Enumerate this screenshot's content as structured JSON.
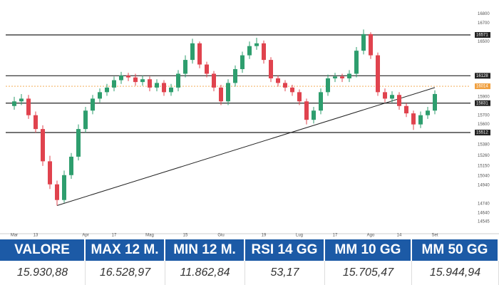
{
  "chart_data": {
    "type": "candlestick",
    "categories": [
      "Mar",
      null,
      null,
      "13",
      null,
      null,
      null,
      null,
      null,
      null,
      "Apr",
      null,
      null,
      null,
      "17",
      null,
      null,
      null,
      null,
      "Mag",
      null,
      null,
      null,
      null,
      "15",
      null,
      null,
      null,
      null,
      "Giu",
      null,
      null,
      null,
      null,
      null,
      "19",
      null,
      null,
      null,
      null,
      "Lug",
      null,
      null,
      null,
      null,
      "17",
      null,
      null,
      null,
      null,
      "Ago",
      null,
      null,
      null,
      "14",
      null,
      null,
      null,
      null,
      "Set"
    ],
    "open": [
      15800,
      15850,
      15880,
      15700,
      15550,
      15200,
      14950,
      14780,
      15050,
      15250,
      15550,
      15750,
      15880,
      15950,
      16000,
      16080,
      16130,
      16110,
      16060,
      16090,
      16000,
      16050,
      15950,
      16000,
      16150,
      16300,
      16480,
      16250,
      16150,
      16000,
      15850,
      16050,
      16200,
      16350,
      16450,
      16480,
      16300,
      16100,
      16050,
      16000,
      15950,
      15850,
      15650,
      15750,
      15950,
      16100,
      16120,
      16100,
      16150,
      16400,
      16580,
      16350,
      15950,
      15880,
      15920,
      15800,
      15720,
      15600,
      15700,
      15750
    ],
    "high": [
      15900,
      15930,
      15920,
      15740,
      15590,
      15260,
      14990,
      15100,
      15290,
      15600,
      15790,
      15920,
      15990,
      16040,
      16120,
      16170,
      16160,
      16150,
      16130,
      16120,
      16090,
      16080,
      16040,
      16190,
      16350,
      16530,
      16500,
      16280,
      16180,
      16030,
      16090,
      16240,
      16390,
      16500,
      16540,
      16510,
      16330,
      16130,
      16080,
      16030,
      15980,
      15880,
      15790,
      15990,
      16140,
      16160,
      16150,
      16190,
      16440,
      16630,
      16600,
      16380,
      15990,
      15960,
      15950,
      15830,
      15750,
      15740,
      15790,
      15970
    ],
    "low": [
      15760,
      15810,
      15660,
      15510,
      15150,
      14900,
      14720,
      14750,
      15010,
      15210,
      15510,
      15710,
      15840,
      15910,
      15960,
      16040,
      16070,
      16020,
      16020,
      15960,
      15960,
      15910,
      15910,
      15960,
      16110,
      16260,
      16210,
      16110,
      15960,
      15810,
      15810,
      16010,
      16160,
      16310,
      16410,
      16260,
      16060,
      16010,
      15960,
      15910,
      15810,
      15600,
      15610,
      15710,
      15910,
      16060,
      16060,
      16060,
      16110,
      16360,
      16310,
      15910,
      15840,
      15840,
      15760,
      15680,
      15540,
      15560,
      15660,
      15710
    ],
    "close": [
      15850,
      15880,
      15700,
      15550,
      15200,
      14950,
      14780,
      15050,
      15250,
      15550,
      15750,
      15880,
      15950,
      16000,
      16080,
      16130,
      16110,
      16060,
      16090,
      16000,
      16050,
      15950,
      16000,
      16150,
      16300,
      16480,
      16250,
      16150,
      16000,
      15850,
      16050,
      16200,
      16350,
      16450,
      16480,
      16300,
      16100,
      16050,
      16000,
      15950,
      15850,
      15650,
      15750,
      15950,
      16100,
      16120,
      16100,
      16150,
      16400,
      16580,
      16350,
      15950,
      15880,
      15920,
      15800,
      15720,
      15600,
      15700,
      15750,
      15930
    ],
    "up_color": "#2e9e6e",
    "down_color": "#e0434e",
    "ylim": [
      14399,
      16950
    ],
    "yticks": [
      16800,
      16700,
      16500,
      15900,
      15700,
      15600,
      15380,
      15260,
      15150,
      15040,
      14940,
      14740,
      14640,
      14545
    ],
    "levels": [
      16571,
      16128,
      15831,
      15512
    ],
    "price": 16014,
    "price_color": "#f0a040",
    "trendline": {
      "x": [
        6,
        59
      ],
      "y": [
        14720,
        16000
      ]
    }
  },
  "table": {
    "headers": [
      "VALORE",
      "MAX 12 M.",
      "MIN 12 M.",
      "RSI 14 GG",
      "MM 10 GG",
      "MM 50 GG"
    ],
    "values": [
      "15.930,88",
      "16.528,97",
      "11.862,84",
      "53,17",
      "15.705,47",
      "15.944,94"
    ]
  }
}
